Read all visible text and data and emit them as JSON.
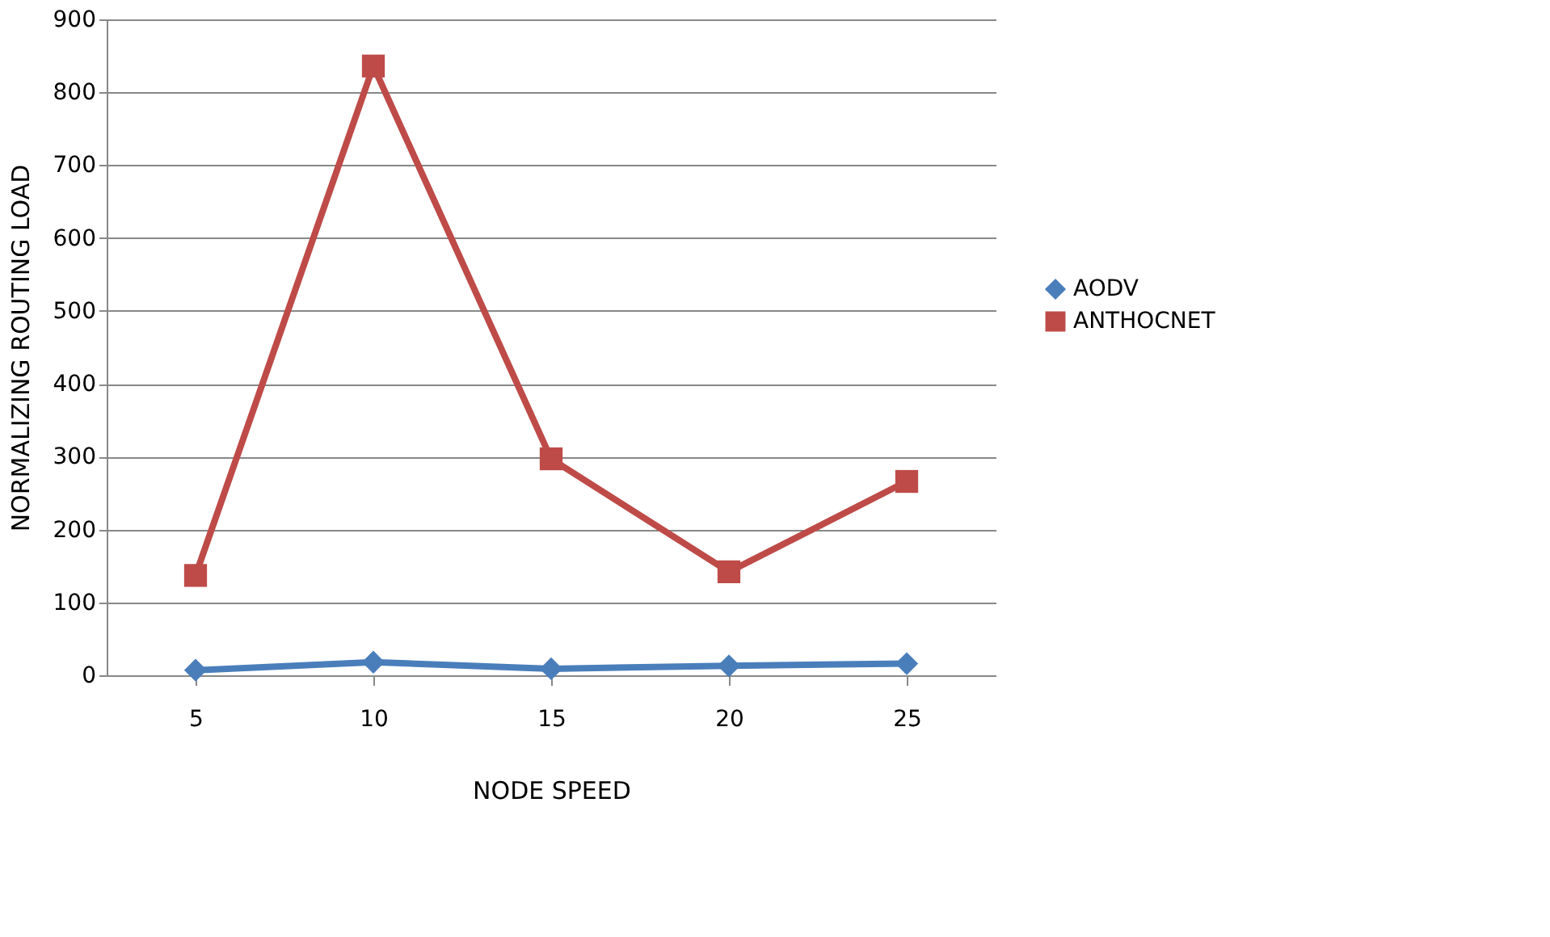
{
  "chart_data": {
    "type": "line",
    "xlabel": "NODE SPEED",
    "ylabel": "NORMALIZING ROUTING LOAD",
    "categories": [
      "5",
      "10",
      "15",
      "20",
      "25"
    ],
    "series": [
      {
        "name": "AODV",
        "color": "#4a7ebb",
        "marker": "diamond",
        "values": [
          7,
          18,
          9,
          13,
          16
        ]
      },
      {
        "name": "ANTHOCNET",
        "color": "#be4b48",
        "marker": "square",
        "values": [
          137,
          836,
          297,
          142,
          266
        ]
      }
    ],
    "ylim": [
      0,
      900
    ],
    "yticks": [
      0,
      100,
      200,
      300,
      400,
      500,
      600,
      700,
      800,
      900
    ],
    "grid": "y",
    "legend": "right",
    "line_style": "solid"
  }
}
